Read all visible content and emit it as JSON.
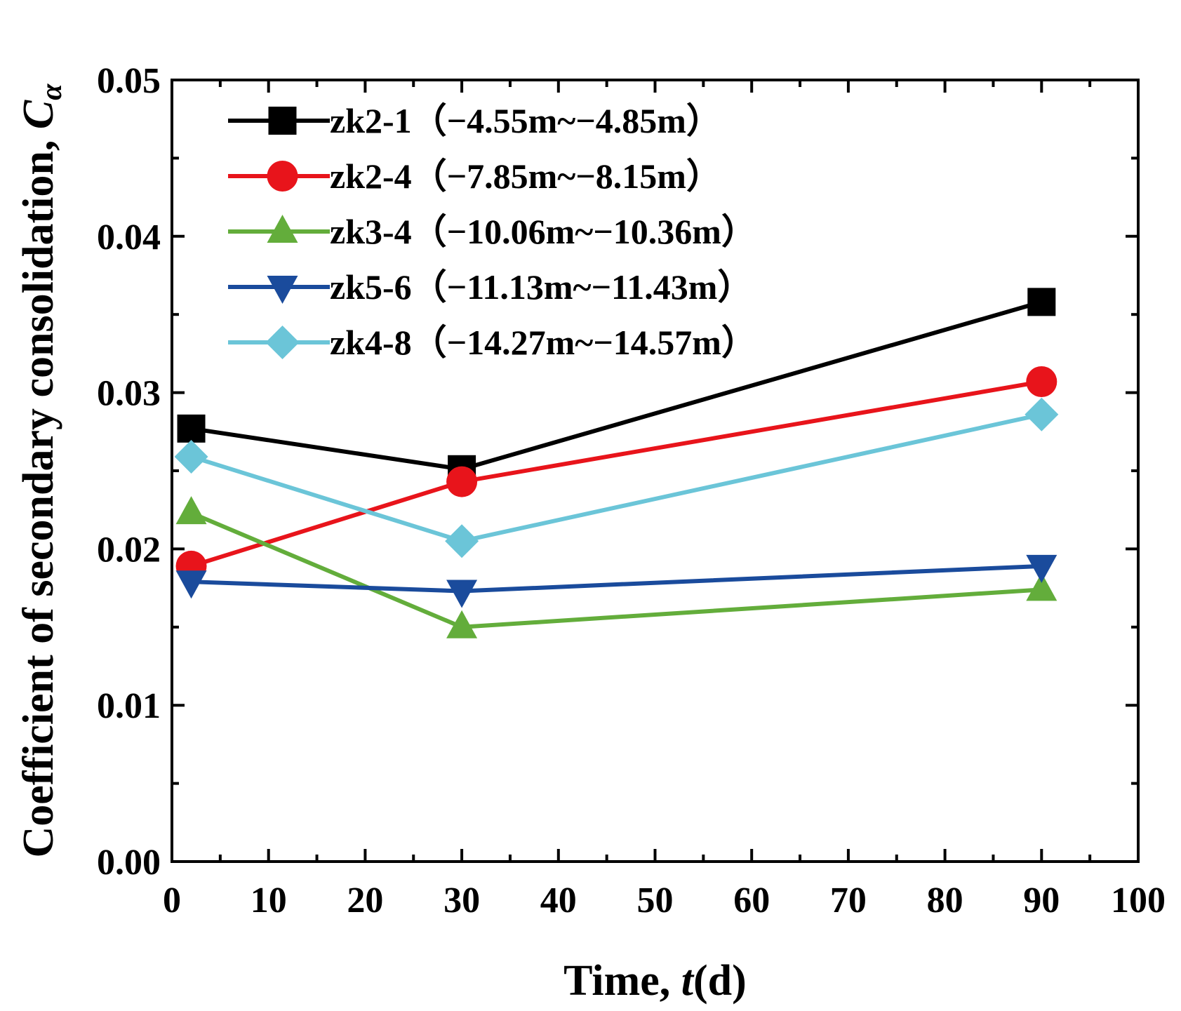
{
  "chart_data": {
    "type": "line",
    "xlabel": "Time, ",
    "xlabel_italic": "t",
    "xlabel_unit": "(d)",
    "ylabel": "Coefficient of secondary consolidation, ",
    "ylabel_italic": "C",
    "ylabel_sub": "α",
    "xlim": [
      0,
      100
    ],
    "ylim": [
      0,
      0.05
    ],
    "xticks": [
      0,
      10,
      20,
      30,
      40,
      50,
      60,
      70,
      80,
      90,
      100
    ],
    "xtick_labels": [
      "0",
      "10",
      "20",
      "30",
      "40",
      "50",
      "60",
      "70",
      "80",
      "90",
      "100"
    ],
    "yticks": [
      0,
      0.01,
      0.02,
      0.03,
      0.04,
      0.05
    ],
    "ytick_labels": [
      "0.00",
      "0.01",
      "0.02",
      "0.03",
      "0.04",
      "0.05"
    ],
    "grid": false,
    "legend_position": "top-left",
    "x": [
      2,
      30,
      90
    ],
    "series": [
      {
        "name": "zk2-1（−4.55m~−4.85m）",
        "color": "#000000",
        "marker": "square",
        "values": [
          0.0277,
          0.0251,
          0.0358
        ]
      },
      {
        "name": "zk2-4（−7.85m~−8.15m）",
        "color": "#e8141b",
        "marker": "circle",
        "values": [
          0.0189,
          0.0243,
          0.0307
        ]
      },
      {
        "name": "zk3-4（−10.06m~−10.36m）",
        "color": "#63ad3b",
        "marker": "triangle-up",
        "values": [
          0.0223,
          0.015,
          0.0174
        ]
      },
      {
        "name": "zk5-6（−11.13m~−11.43m）",
        "color": "#1a4b9c",
        "marker": "triangle-down",
        "values": [
          0.0179,
          0.0173,
          0.0189
        ]
      },
      {
        "name": "zk4-8（−14.27m~−14.57m）",
        "color": "#6bc5d8",
        "marker": "diamond",
        "values": [
          0.0259,
          0.0205,
          0.0286
        ]
      }
    ]
  }
}
